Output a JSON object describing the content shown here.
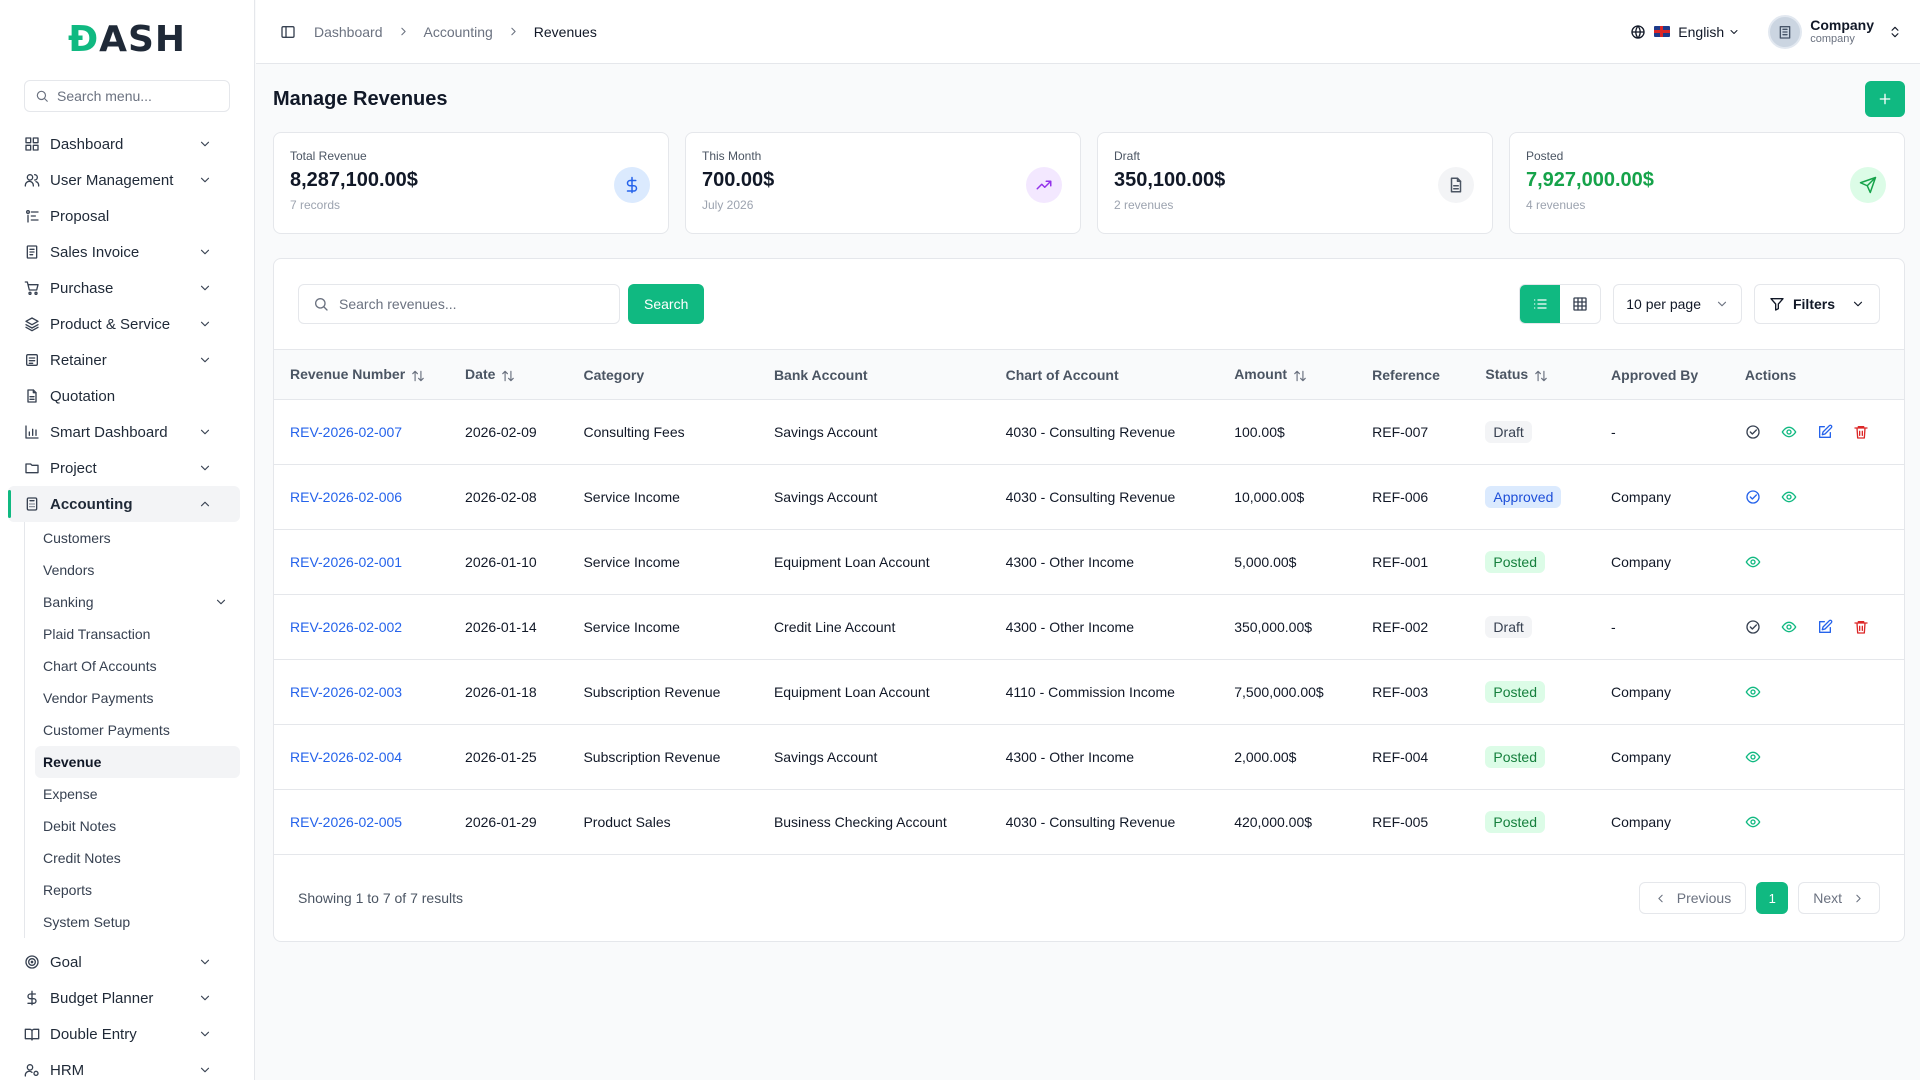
{
  "brand": {
    "logo_d": "Đ",
    "logo_rest": "ASH"
  },
  "sidebar": {
    "search_placeholder": "Search menu...",
    "items": [
      {
        "label": "Dashboard",
        "icon": "grid-icon",
        "chevron": true
      },
      {
        "label": "User Management",
        "icon": "users-icon",
        "chevron": true
      },
      {
        "label": "Proposal",
        "icon": "proposal-icon",
        "chevron": false
      },
      {
        "label": "Sales Invoice",
        "icon": "invoice-icon",
        "chevron": true
      },
      {
        "label": "Purchase",
        "icon": "cart-icon",
        "chevron": true
      },
      {
        "label": "Product & Service",
        "icon": "layers-icon",
        "chevron": true
      },
      {
        "label": "Retainer",
        "icon": "retainer-icon",
        "chevron": true
      },
      {
        "label": "Quotation",
        "icon": "file-icon",
        "chevron": false
      },
      {
        "label": "Smart Dashboard",
        "icon": "bar-chart-icon",
        "chevron": true
      },
      {
        "label": "Project",
        "icon": "folder-icon",
        "chevron": true
      },
      {
        "label": "Accounting",
        "icon": "calculator-icon",
        "chevron": true,
        "active": true
      }
    ],
    "accounting_sub": [
      {
        "label": "Customers"
      },
      {
        "label": "Vendors"
      },
      {
        "label": "Banking",
        "chevron": true
      },
      {
        "label": "Plaid Transaction"
      },
      {
        "label": "Chart Of Accounts"
      },
      {
        "label": "Vendor Payments"
      },
      {
        "label": "Customer Payments"
      },
      {
        "label": "Revenue",
        "active": true
      },
      {
        "label": "Expense"
      },
      {
        "label": "Debit Notes"
      },
      {
        "label": "Credit Notes"
      },
      {
        "label": "Reports"
      },
      {
        "label": "System Setup"
      }
    ],
    "bottom_items": [
      {
        "label": "Goal",
        "icon": "target-icon",
        "chevron": true
      },
      {
        "label": "Budget Planner",
        "icon": "dollar-icon",
        "chevron": true
      },
      {
        "label": "Double Entry",
        "icon": "book-icon",
        "chevron": true
      },
      {
        "label": "HRM",
        "icon": "user-cog-icon",
        "chevron": true
      }
    ]
  },
  "header": {
    "breadcrumb": [
      "Dashboard",
      "Accounting",
      "Revenues"
    ],
    "language": "English",
    "user_name": "Company",
    "user_role": "company"
  },
  "page": {
    "title": "Manage Revenues"
  },
  "cards": [
    {
      "label": "Total Revenue",
      "value": "8,287,100.00$",
      "sub": "7 records",
      "icon": "dollar-icon",
      "icon_bg": "#dbeafe",
      "icon_color": "#2563eb",
      "value_color": "#111827"
    },
    {
      "label": "This Month",
      "value": "700.00$",
      "sub": "July 2026",
      "icon": "trending-up-icon",
      "icon_bg": "#f3e8ff",
      "icon_color": "#9333ea",
      "value_color": "#111827"
    },
    {
      "label": "Draft",
      "value": "350,100.00$",
      "sub": "2 revenues",
      "icon": "document-icon",
      "icon_bg": "#f3f4f6",
      "icon_color": "#4b5563",
      "value_color": "#111827"
    },
    {
      "label": "Posted",
      "value": "7,927,000.00$",
      "sub": "4 revenues",
      "icon": "send-icon",
      "icon_bg": "#dcfce7",
      "icon_color": "#16a34a",
      "value_color": "#16a34a"
    }
  ],
  "toolbar": {
    "search_placeholder": "Search revenues...",
    "search_button": "Search",
    "per_page": "10 per page",
    "filters": "Filters"
  },
  "table": {
    "columns": [
      {
        "label": "Revenue Number",
        "sortable": true
      },
      {
        "label": "Date",
        "sortable": true
      },
      {
        "label": "Category",
        "sortable": false
      },
      {
        "label": "Bank Account",
        "sortable": false
      },
      {
        "label": "Chart of Account",
        "sortable": false
      },
      {
        "label": "Amount",
        "sortable": true
      },
      {
        "label": "Reference",
        "sortable": false
      },
      {
        "label": "Status",
        "sortable": true
      },
      {
        "label": "Approved By",
        "sortable": false
      },
      {
        "label": "Actions",
        "sortable": false
      }
    ],
    "rows": [
      {
        "number": "REV-2026-02-007",
        "date": "2026-02-09",
        "category": "Consulting Fees",
        "bank": "Savings Account",
        "coa": "4030 - Consulting Revenue",
        "amount": "100.00$",
        "ref": "REF-007",
        "status": "Draft",
        "approved_by": "-",
        "actions": [
          "approve",
          "view",
          "edit",
          "delete"
        ]
      },
      {
        "number": "REV-2026-02-006",
        "date": "2026-02-08",
        "category": "Service Income",
        "bank": "Savings Account",
        "coa": "4030 - Consulting Revenue",
        "amount": "10,000.00$",
        "ref": "REF-006",
        "status": "Approved",
        "approved_by": "Company",
        "actions": [
          "post",
          "view"
        ]
      },
      {
        "number": "REV-2026-02-001",
        "date": "2026-01-10",
        "category": "Service Income",
        "bank": "Equipment Loan Account",
        "coa": "4300 - Other Income",
        "amount": "5,000.00$",
        "ref": "REF-001",
        "status": "Posted",
        "approved_by": "Company",
        "actions": [
          "view"
        ]
      },
      {
        "number": "REV-2026-02-002",
        "date": "2026-01-14",
        "category": "Service Income",
        "bank": "Credit Line Account",
        "coa": "4300 - Other Income",
        "amount": "350,000.00$",
        "ref": "REF-002",
        "status": "Draft",
        "approved_by": "-",
        "actions": [
          "approve",
          "view",
          "edit",
          "delete"
        ]
      },
      {
        "number": "REV-2026-02-003",
        "date": "2026-01-18",
        "category": "Subscription Revenue",
        "bank": "Equipment Loan Account",
        "coa": "4110 - Commission Income",
        "amount": "7,500,000.00$",
        "ref": "REF-003",
        "status": "Posted",
        "approved_by": "Company",
        "actions": [
          "view"
        ]
      },
      {
        "number": "REV-2026-02-004",
        "date": "2026-01-25",
        "category": "Subscription Revenue",
        "bank": "Savings Account",
        "coa": "4300 - Other Income",
        "amount": "2,000.00$",
        "ref": "REF-004",
        "status": "Posted",
        "approved_by": "Company",
        "actions": [
          "view"
        ]
      },
      {
        "number": "REV-2026-02-005",
        "date": "2026-01-29",
        "category": "Product Sales",
        "bank": "Business Checking Account",
        "coa": "4030 - Consulting Revenue",
        "amount": "420,000.00$",
        "ref": "REF-005",
        "status": "Posted",
        "approved_by": "Company",
        "actions": [
          "view"
        ]
      }
    ]
  },
  "footer": {
    "showing": "Showing 1 to 7 of 7 results",
    "previous": "Previous",
    "next": "Next",
    "current_page": "1"
  }
}
